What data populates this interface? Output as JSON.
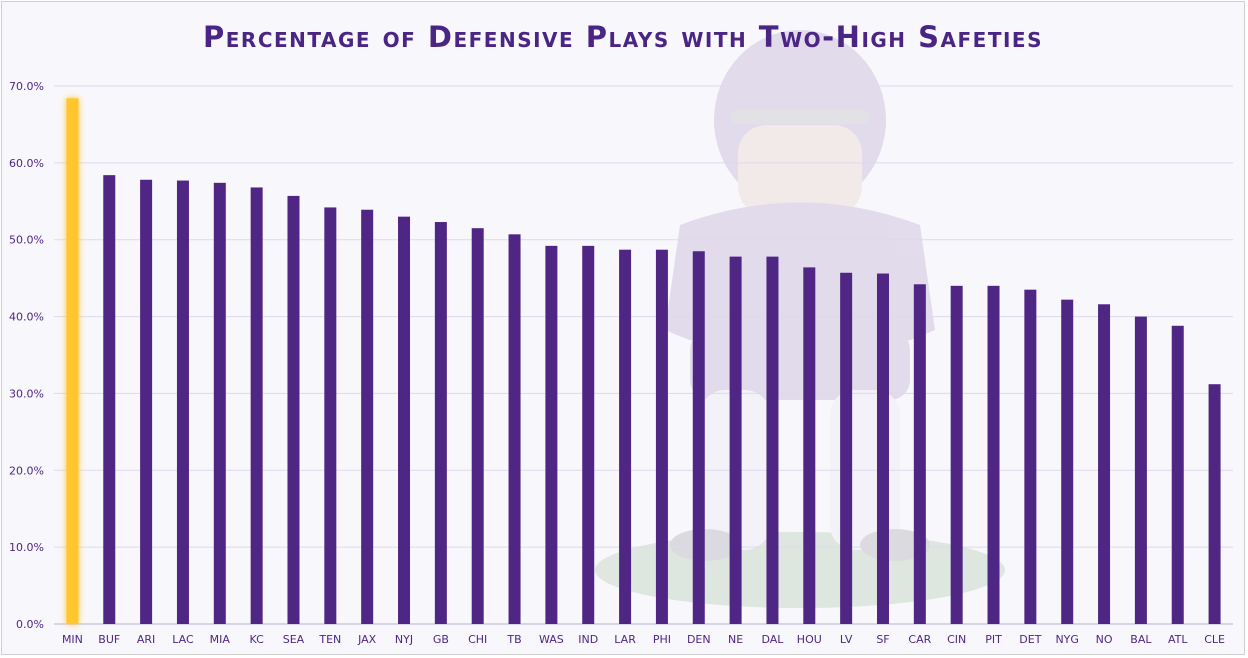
{
  "chart_data": {
    "type": "bar",
    "title": "Percentage of Defensive Plays with Two-High Safeties",
    "xlabel": "",
    "ylabel": "",
    "ylim": [
      0,
      70
    ],
    "yticks": [
      0,
      10,
      20,
      30,
      40,
      50,
      60,
      70
    ],
    "ytick_labels": [
      "0.0%",
      "10.0%",
      "20.0%",
      "30.0%",
      "40.0%",
      "50.0%",
      "60.0%",
      "70.0%"
    ],
    "grid": true,
    "categories": [
      "MIN",
      "BUF",
      "ARI",
      "LAC",
      "MIA",
      "KC",
      "SEA",
      "TEN",
      "JAX",
      "NYJ",
      "GB",
      "CHI",
      "TB",
      "WAS",
      "IND",
      "LAR",
      "PHI",
      "DEN",
      "NE",
      "DAL",
      "HOU",
      "LV",
      "SF",
      "CAR",
      "CIN",
      "PIT",
      "DET",
      "NYG",
      "NO",
      "BAL",
      "ATL",
      "CLE"
    ],
    "values": [
      68.4,
      58.4,
      57.8,
      57.7,
      57.4,
      56.8,
      55.7,
      54.2,
      53.9,
      53.0,
      52.3,
      51.5,
      50.7,
      49.2,
      49.2,
      48.7,
      48.7,
      48.5,
      47.8,
      47.8,
      46.4,
      45.7,
      45.6,
      44.2,
      44.0,
      44.0,
      43.5,
      42.2,
      41.6,
      40.0,
      38.8,
      31.2
    ],
    "highlight_category": "MIN",
    "colors": {
      "bar": "#4f2683",
      "highlight": "#ffc62f",
      "grid": "#ddd9ee",
      "text": "#4f2683"
    }
  }
}
